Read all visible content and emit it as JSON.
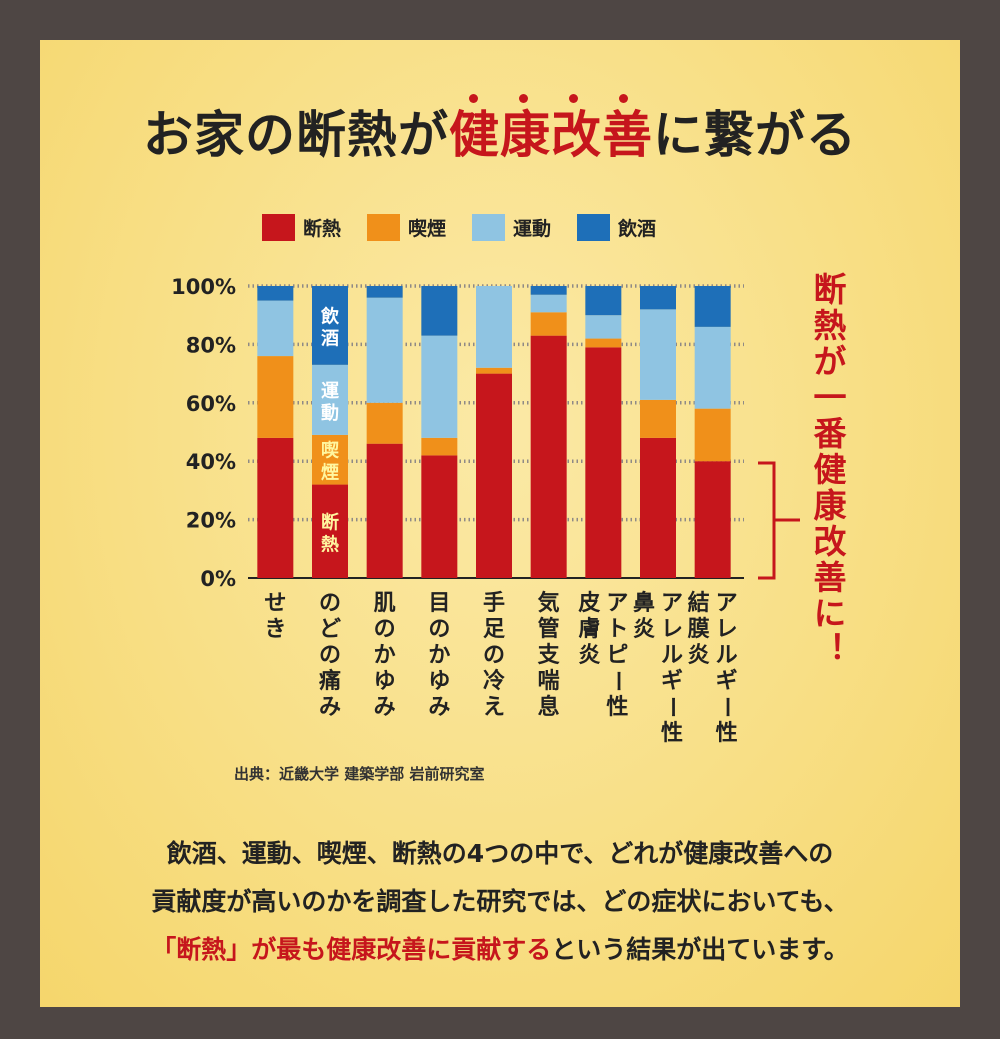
{
  "title": {
    "pre": "お家の断熱が",
    "highlight": "健康改善",
    "post": "に繋がる"
  },
  "legend": [
    {
      "label": "断熱",
      "color": "#c6161c"
    },
    {
      "label": "喫煙",
      "color": "#f0901a"
    },
    {
      "label": "運動",
      "color": "#8fc4e2"
    },
    {
      "label": "飲酒",
      "color": "#1e6fb8"
    }
  ],
  "chart_data": {
    "type": "bar",
    "stacked": true,
    "categories": [
      "せき",
      "のどの痛み",
      "肌のかゆみ",
      "目のかゆみ",
      "手足の冷え",
      "気管支喘息",
      "アトピー性皮膚炎",
      "アレルギー性鼻炎",
      "アレルギー性結膜炎"
    ],
    "category_columns": [
      [
        "せき"
      ],
      [
        "のどの痛み"
      ],
      [
        "肌のかゆみ"
      ],
      [
        "目のかゆみ"
      ],
      [
        "手足の冷え"
      ],
      [
        "気管支喘息"
      ],
      [
        "アトピー性",
        "皮膚炎"
      ],
      [
        "アレルギー性",
        "鼻炎"
      ],
      [
        "アレルギー性",
        "結膜炎"
      ]
    ],
    "series": [
      {
        "name": "断熱",
        "values": [
          48,
          32,
          46,
          42,
          70,
          83,
          79,
          48,
          40
        ]
      },
      {
        "name": "喫煙",
        "values": [
          28,
          17,
          14,
          6,
          2,
          8,
          3,
          13,
          18
        ]
      },
      {
        "name": "運動",
        "values": [
          19,
          24,
          36,
          35,
          28,
          6,
          8,
          31,
          28
        ]
      },
      {
        "name": "飲酒",
        "values": [
          5,
          27,
          4,
          17,
          0,
          3,
          10,
          8,
          14
        ]
      }
    ],
    "in_bar_labels": [
      "飲酒",
      "運動",
      "喫煙",
      "断熱"
    ],
    "yticks": [
      "0%",
      "20%",
      "40%",
      "60%",
      "80%",
      "100%"
    ],
    "ylim": [
      0,
      100
    ],
    "grid": true,
    "legend_position": "top"
  },
  "side_annotation": "断熱が一番健康改善に！",
  "source": "出典：近畿大学 建築学部 岩前研究室",
  "body": {
    "line1": "飲酒、運動、喫煙、断熱の4つの中で、どれが健康改善への",
    "line2": "貢献度が高いのかを調査した研究では、どの症状においても、",
    "line3_red": "「断熱」が最も健康改善に貢献する",
    "line3_rest": "という結果が出ています。"
  }
}
